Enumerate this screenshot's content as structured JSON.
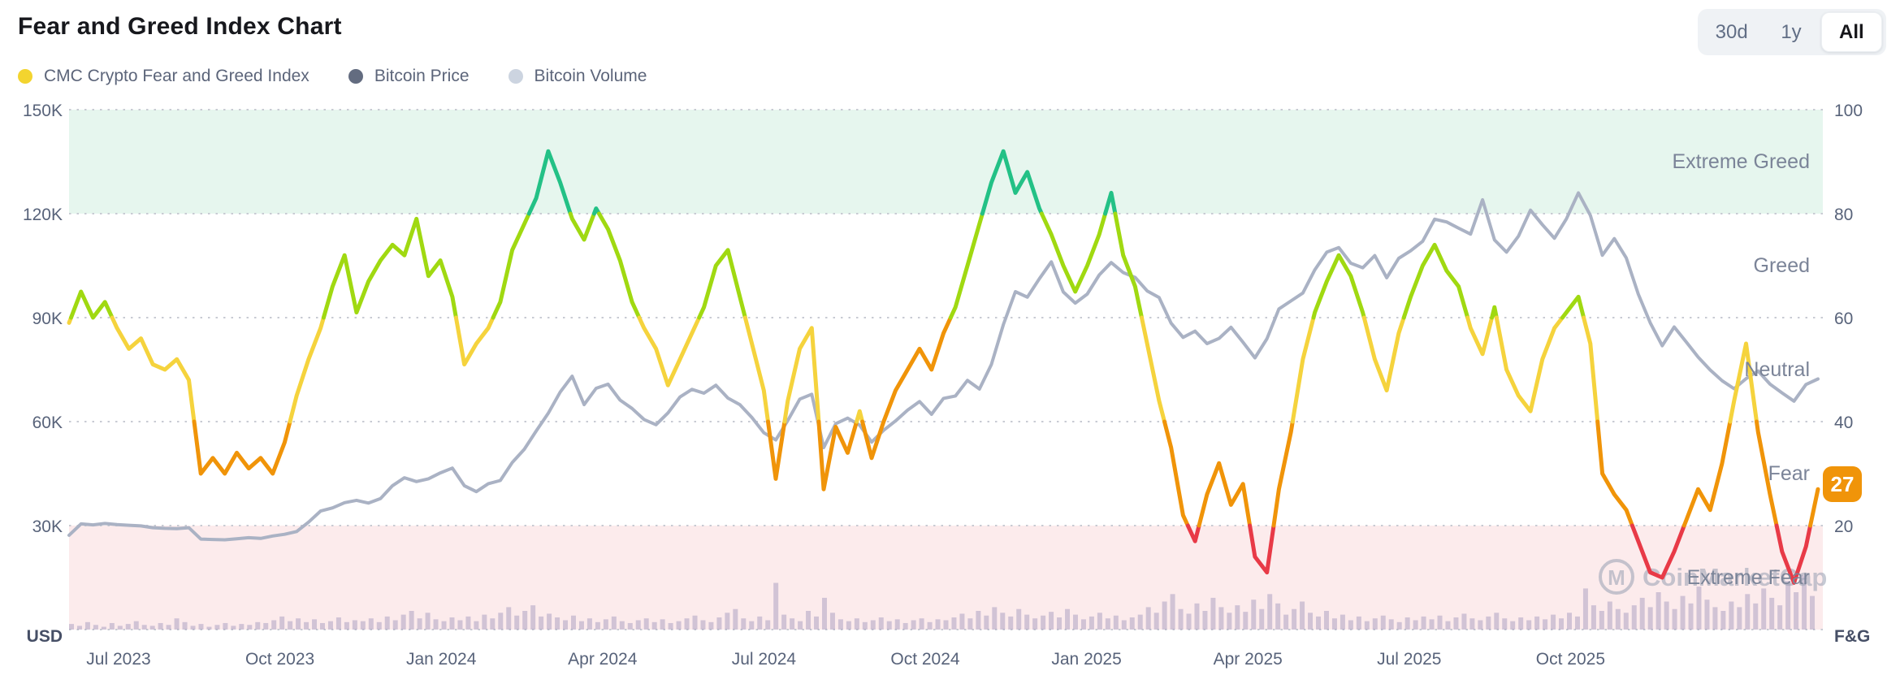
{
  "header": {
    "title": "Fear and Greed Index Chart",
    "range_buttons": [
      {
        "label": "30d",
        "active": false
      },
      {
        "label": "1y",
        "active": false
      },
      {
        "label": "All",
        "active": true
      }
    ]
  },
  "legend": [
    {
      "label": "CMC Crypto Fear and Greed Index",
      "color": "#f3d42f"
    },
    {
      "label": "Bitcoin Price",
      "color": "#636c80"
    },
    {
      "label": "Bitcoin Volume",
      "color": "#ccd4e0"
    }
  ],
  "watermark": {
    "text": "CoinMarketCap",
    "logo": "cmc-m-in-circle",
    "color": "#98a0b2"
  },
  "chart_data": {
    "type": "line",
    "title": "Fear and Greed Index Chart",
    "grid": "dotted-horizontal",
    "x_tick_labels": [
      "Jul 2023",
      "Oct 2023",
      "Jan 2024",
      "Apr 2024",
      "Jul 2024",
      "Oct 2024",
      "Jan 2025",
      "Apr 2025",
      "Jul 2025",
      "Oct 2025"
    ],
    "axes": {
      "left": {
        "ticks": [
          "150K",
          "120K",
          "90K",
          "60K",
          "30K"
        ],
        "unit": "USD",
        "range": [
          0,
          150000
        ]
      },
      "right": {
        "ticks": [
          "100",
          "80",
          "60",
          "40",
          "20"
        ],
        "unit": "F&G",
        "range": [
          0,
          100
        ]
      }
    },
    "zones": [
      {
        "label": "Extreme Greed",
        "range": [
          80,
          100
        ],
        "background": "#e6f6ee"
      },
      {
        "label": "Greed",
        "range": [
          60,
          80
        ],
        "background": "#ffffff"
      },
      {
        "label": "Neutral",
        "range": [
          40,
          60
        ],
        "background": "#ffffff"
      },
      {
        "label": "Fear",
        "range": [
          20,
          40
        ],
        "background": "#ffffff"
      },
      {
        "label": "Extreme Fear",
        "range": [
          0,
          20
        ],
        "background": "#fcebec"
      }
    ],
    "value_bands": [
      {
        "min": 80,
        "color": "#23c186"
      },
      {
        "min": 60,
        "color": "#a0d911"
      },
      {
        "min": 40,
        "color": "#f5d33d"
      },
      {
        "min": 20,
        "color": "#f09409"
      },
      {
        "min": 0,
        "color": "#e83a47"
      }
    ],
    "badge": {
      "text": "27",
      "color": "#f09409",
      "value": 27
    },
    "series": [
      {
        "name": "CMC Crypto Fear and Greed Index",
        "axis": "right",
        "style": "multicolor-by-value",
        "values": [
          59,
          65,
          60,
          63,
          58,
          54,
          56,
          51,
          50,
          52,
          48,
          30,
          33,
          30,
          34,
          31,
          33,
          30,
          36,
          45,
          52,
          58,
          66,
          72,
          61,
          67,
          71,
          74,
          72,
          79,
          68,
          71,
          64,
          51,
          55,
          58,
          63,
          73,
          78,
          83,
          92,
          86,
          79,
          75,
          81,
          77,
          71,
          63,
          58,
          54,
          47,
          52,
          57,
          62,
          70,
          73,
          64,
          55,
          46,
          29,
          44,
          54,
          58,
          27,
          39,
          34,
          42,
          33,
          40,
          46,
          50,
          54,
          50,
          57,
          62,
          70,
          78,
          86,
          92,
          84,
          88,
          81,
          76,
          70,
          65,
          70,
          76,
          84,
          72,
          66,
          55,
          44,
          35,
          22,
          17,
          26,
          32,
          24,
          28,
          14,
          11,
          27,
          38,
          52,
          61,
          67,
          72,
          68,
          61,
          52,
          46,
          57,
          64,
          70,
          74,
          69,
          66,
          58,
          53,
          62,
          50,
          45,
          42,
          52,
          58,
          61,
          64,
          55,
          30,
          26,
          23,
          17,
          11,
          10,
          15,
          21,
          27,
          23,
          32,
          44,
          55,
          38,
          26,
          15,
          9,
          16,
          27
        ]
      },
      {
        "name": "Bitcoin Price",
        "axis": "left",
        "unit": "K USD",
        "color": "#aab2c4",
        "values": [
          27.2,
          30.5,
          30.2,
          30.6,
          30.3,
          30.1,
          29.9,
          29.4,
          29.2,
          29.1,
          29.4,
          26.1,
          26.0,
          25.9,
          26.2,
          26.5,
          26.3,
          27.0,
          27.5,
          28.3,
          31.0,
          34.2,
          35.1,
          36.6,
          37.3,
          36.5,
          37.8,
          41.5,
          43.8,
          42.7,
          43.5,
          45.2,
          46.6,
          41.5,
          39.8,
          42.1,
          43.0,
          48.2,
          52.0,
          57.3,
          62.4,
          68.5,
          73.1,
          64.9,
          69.6,
          70.8,
          66.2,
          63.8,
          60.6,
          59.1,
          62.5,
          67.1,
          69.3,
          68.2,
          70.5,
          66.8,
          64.9,
          61.2,
          56.8,
          54.7,
          60.3,
          66.5,
          67.9,
          52.5,
          59.4,
          61.0,
          59.0,
          54.1,
          57.5,
          60.2,
          63.3,
          65.8,
          62.1,
          66.7,
          67.4,
          71.9,
          69.4,
          76.5,
          88.0,
          97.5,
          95.9,
          101.2,
          106.1,
          97.4,
          94.2,
          96.8,
          102.3,
          105.9,
          103.0,
          101.6,
          97.7,
          95.8,
          88.4,
          84.3,
          86.1,
          82.5,
          84.0,
          87.2,
          82.9,
          78.4,
          83.9,
          92.5,
          94.8,
          97.1,
          103.8,
          108.9,
          110.2,
          105.7,
          104.4,
          107.9,
          101.5,
          107.1,
          109.3,
          112.0,
          118.4,
          117.6,
          115.8,
          114.1,
          124.0,
          112.4,
          108.9,
          113.5,
          121.0,
          116.8,
          112.9,
          118.5,
          126.0,
          119.5,
          108.0,
          112.8,
          107.2,
          96.8,
          88.5,
          81.9,
          87.3,
          83.0,
          78.6,
          74.9,
          71.8,
          69.5,
          72.4,
          74.6,
          70.8,
          68.3,
          65.9,
          70.7,
          72.3
        ]
      },
      {
        "name": "Bitcoin Volume",
        "axis": "left",
        "style": "bars-relative",
        "color": "#a89cc0",
        "values": [
          6,
          4,
          8,
          5,
          3,
          7,
          4,
          6,
          9,
          5,
          4,
          7,
          5,
          12,
          8,
          4,
          6,
          3,
          5,
          7,
          4,
          6,
          5,
          8,
          7,
          10,
          14,
          9,
          12,
          8,
          11,
          7,
          9,
          13,
          8,
          10,
          9,
          12,
          8,
          14,
          10,
          16,
          20,
          12,
          18,
          11,
          9,
          13,
          10,
          14,
          9,
          16,
          12,
          18,
          24,
          15,
          20,
          26,
          14,
          17,
          13,
          10,
          15,
          9,
          12,
          8,
          11,
          14,
          9,
          7,
          10,
          12,
          8,
          11,
          7,
          9,
          12,
          15,
          10,
          8,
          13,
          18,
          22,
          12,
          9,
          14,
          10,
          50,
          16,
          12,
          9,
          20,
          14,
          34,
          18,
          11,
          9,
          12,
          8,
          10,
          13,
          9,
          11,
          7,
          10,
          12,
          8,
          11,
          10,
          13,
          17,
          12,
          20,
          15,
          24,
          18,
          14,
          22,
          16,
          12,
          15,
          19,
          13,
          22,
          16,
          11,
          14,
          18,
          12,
          15,
          10,
          13,
          16,
          24,
          18,
          30,
          38,
          22,
          17,
          28,
          20,
          34,
          24,
          18,
          26,
          19,
          32,
          22,
          38,
          28,
          16,
          22,
          30,
          18,
          14,
          20,
          12,
          16,
          10,
          14,
          9,
          12,
          15,
          11,
          8,
          13,
          10,
          14,
          11,
          15,
          9,
          13,
          17,
          12,
          10,
          14,
          18,
          12,
          9,
          13,
          10,
          14,
          11,
          16,
          12,
          18,
          14,
          44,
          26,
          20,
          30,
          22,
          18,
          26,
          34,
          24,
          40,
          30,
          22,
          36,
          28,
          46,
          32,
          24,
          20,
          30,
          24,
          38,
          28,
          44,
          34,
          26,
          52,
          40,
          58,
          36
        ]
      }
    ]
  }
}
